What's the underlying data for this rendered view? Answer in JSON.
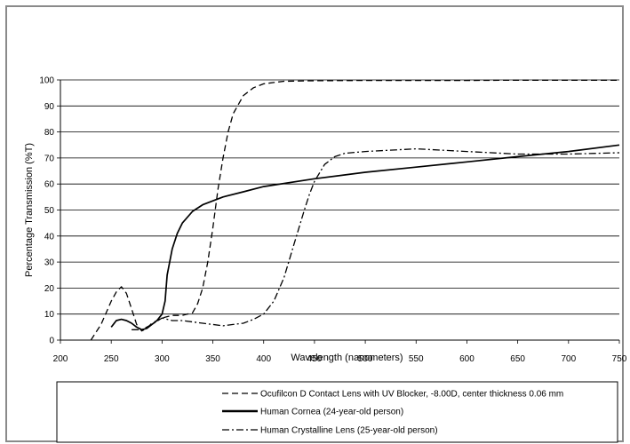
{
  "chart_data": {
    "type": "line",
    "title": "",
    "xlabel": "Wavelength (nanometers)",
    "ylabel": "Percentage Transmission (%T)",
    "xlim": [
      200,
      750
    ],
    "ylim": [
      0,
      100
    ],
    "xticks": [
      200,
      250,
      300,
      350,
      400,
      450,
      500,
      550,
      600,
      650,
      700,
      750
    ],
    "yticks": [
      0,
      10,
      20,
      30,
      40,
      50,
      60,
      70,
      80,
      90,
      100
    ],
    "grid": "horizontal",
    "legend_position": "bottom",
    "series": [
      {
        "name": "Ocufilcon D Contact Lens with UV Blocker, -8.00D, center thickness 0.06 mm",
        "style": "dashed",
        "color": "#000000",
        "x": [
          230,
          240,
          250,
          255,
          260,
          265,
          270,
          275,
          280,
          285,
          290,
          300,
          310,
          320,
          330,
          335,
          340,
          345,
          350,
          355,
          360,
          365,
          370,
          380,
          390,
          400,
          410,
          420,
          450,
          500,
          550,
          600,
          650,
          700,
          750
        ],
        "y": [
          0,
          6,
          15,
          18.5,
          20.5,
          18,
          12,
          6,
          3.5,
          4.5,
          6.5,
          8.5,
          9.5,
          9.5,
          10.5,
          14,
          20,
          30,
          43,
          58,
          70,
          80,
          87,
          94,
          97,
          98.5,
          99,
          99.5,
          99.7,
          99.8,
          99.8,
          99.8,
          99.9,
          99.9,
          99.9
        ]
      },
      {
        "name": "Human Cornea (24-year-old person)",
        "style": "solid",
        "color": "#000000",
        "x": [
          250,
          255,
          260,
          265,
          270,
          275,
          280,
          285,
          290,
          295,
          300,
          303,
          305,
          310,
          315,
          320,
          330,
          340,
          350,
          360,
          380,
          400,
          450,
          500,
          550,
          600,
          650,
          700,
          750
        ],
        "y": [
          5,
          7.5,
          8,
          7.5,
          6.5,
          5,
          4,
          4.5,
          6,
          7.5,
          10,
          15,
          25,
          35,
          41,
          45,
          49.5,
          52,
          53.5,
          55,
          57,
          59,
          62,
          64.5,
          66.5,
          68.5,
          70.5,
          72.5,
          75
        ]
      },
      {
        "name": "Human Crystalline Lens (25-year-old person)",
        "style": "dash-dot",
        "color": "#000000",
        "x": [
          270,
          280,
          290,
          300,
          310,
          320,
          330,
          340,
          350,
          360,
          370,
          380,
          390,
          400,
          410,
          420,
          430,
          440,
          445,
          450,
          460,
          470,
          480,
          500,
          550,
          600,
          650,
          700,
          750
        ],
        "y": [
          4,
          4,
          6,
          8.5,
          7.5,
          7.5,
          7,
          6.5,
          6,
          5.5,
          6,
          6.5,
          8,
          10,
          15,
          24,
          37,
          50,
          56,
          61,
          67.5,
          70.5,
          71.8,
          72.5,
          73.5,
          72.5,
          71.5,
          71.5,
          72
        ]
      }
    ]
  }
}
